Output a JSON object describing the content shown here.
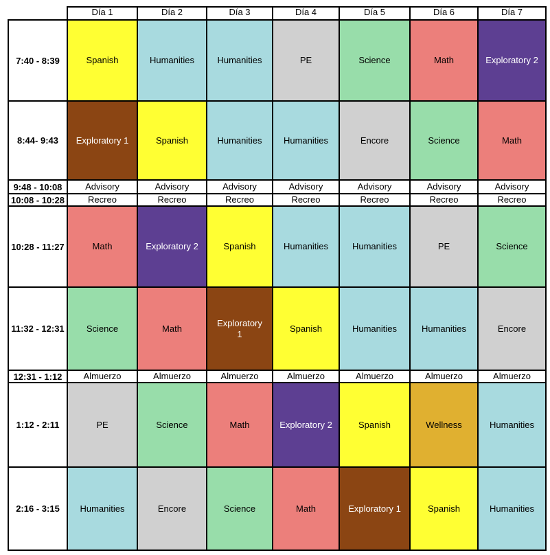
{
  "header": {
    "days": [
      "Día 1",
      "Día 2",
      "Día 3",
      "Día 4",
      "Día 5",
      "Día 6",
      "Día 7"
    ]
  },
  "colors": {
    "Spanish": "#ffff33",
    "Humanities": "#a8dadf",
    "PE": "#d0d0d0",
    "Science": "#98ddaa",
    "Math": "#ec7f7b",
    "Exploratory 2": "#5d3f92",
    "Exploratory 1": "#8b4513",
    "Encore": "#d0d0d0",
    "Wellness": "#e0b030",
    "Advisory": "#ffffff",
    "Recreo": "#ffffff",
    "Almuerzo": "#ffffff"
  },
  "light_text": [
    "Exploratory 1",
    "Exploratory 2"
  ],
  "rows": [
    {
      "time": "7:40 - 8:39",
      "cells": [
        "Spanish",
        "Humanities",
        "Humanities",
        "PE",
        "Science",
        "Math",
        "Exploratory 2"
      ]
    },
    {
      "time": "8:44- 9:43",
      "cells": [
        "Exploratory 1",
        "Spanish",
        "Humanities",
        "Humanities",
        "Encore",
        "Science",
        "Math"
      ]
    },
    {
      "time": "9:48 - 10:08",
      "cells": [
        "Advisory",
        "Advisory",
        "Advisory",
        "Advisory",
        "Advisory",
        "Advisory",
        "Advisory"
      ]
    },
    {
      "time": "10:08 - 10:28",
      "cells": [
        "Recreo",
        "Recreo",
        "Recreo",
        "Recreo",
        "Recreo",
        "Recreo",
        "Recreo"
      ]
    },
    {
      "time": "10:28 - 11:27",
      "cells": [
        "Math",
        "Exploratory 2",
        "Spanish",
        "Humanities",
        "Humanities",
        "PE",
        "Science"
      ]
    },
    {
      "time": "11:32 - 12:31",
      "cells": [
        "Science",
        "Math",
        "Exploratory\n1",
        "Spanish",
        "Humanities",
        "Humanities",
        "Encore"
      ]
    },
    {
      "time": "12:31 - 1:12",
      "cells": [
        "Almuerzo",
        "Almuerzo",
        "Almuerzo",
        "Almuerzo",
        "Almuerzo",
        "Almuerzo",
        "Almuerzo"
      ]
    },
    {
      "time": "1:12 - 2:11",
      "cells": [
        "PE",
        "Science",
        "Math",
        "Exploratory 2",
        "Spanish",
        "Wellness",
        "Humanities"
      ]
    },
    {
      "time": "2:16 - 3:15",
      "cells": [
        "Humanities",
        "Encore",
        "Science",
        "Math",
        "Exploratory 1",
        "Spanish",
        "Humanities"
      ]
    }
  ]
}
